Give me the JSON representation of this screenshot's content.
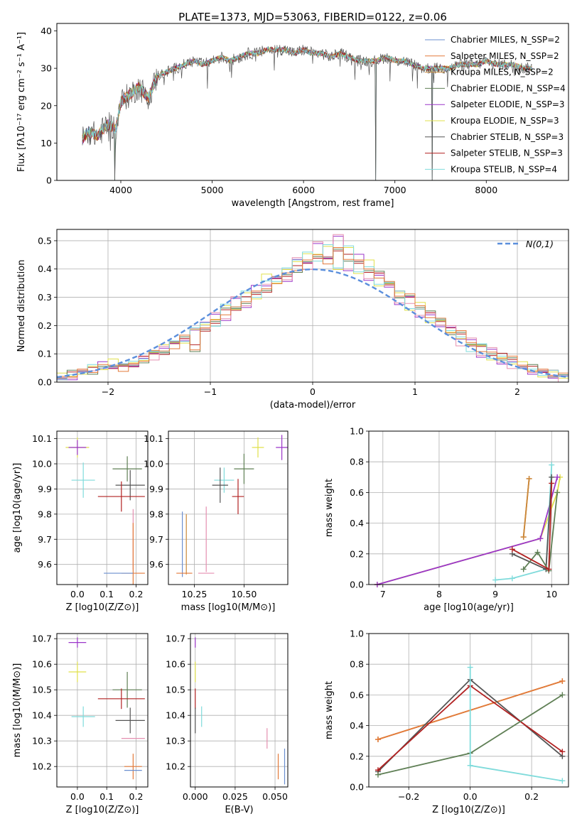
{
  "figure_title": "PLATE=1373, MJD=53063, FIBERID=0122, z=0.06",
  "colors": {
    "chabrier_miles": "#6b8fcf",
    "salpeter_miles": "#e37a3a",
    "kroupa_miles": "#c9893a",
    "chabrier_elodie": "#5f7f55",
    "salpeter_elodie": "#9b35c9",
    "kroupa_elodie": "#e0e04a",
    "chabrier_stelib": "#555555",
    "salpeter_stelib": "#b22222",
    "kroupa_stelib": "#7fdbdb",
    "salpeter_elodie_alt": "#e58fb0",
    "normal_curve": "#5b8fdc"
  },
  "chart_data": [
    {
      "type": "line",
      "panel": "spectrum",
      "xlabel": "wavelength [Angstrom, rest frame]",
      "ylabel": "Flux [fλ10⁻¹⁷ erg cm⁻² s⁻¹ A⁻¹]",
      "xlim": [
        3300,
        8900
      ],
      "ylim": [
        0,
        42
      ],
      "xticks": [
        4000,
        5000,
        6000,
        7000,
        8000
      ],
      "yticks": [
        0,
        10,
        20,
        30,
        40
      ],
      "legend_position": "top-right",
      "legend": [
        "Chabrier MILES, N_SSP=2",
        "Salpeter MILES, N_SSP=2",
        "Kroupa MILES, N_SSP=2",
        "Chabrier ELODIE, N_SSP=4",
        "Salpeter ELODIE, N_SSP=3",
        "Kroupa ELODIE, N_SSP=3",
        "Chabrier STELIB, N_SSP=3",
        "Salpeter STELIB, N_SSP=3",
        "Kroupa STELIB, N_SSP=4"
      ],
      "continuum": {
        "x": [
          3580,
          3650,
          3750,
          3850,
          3950,
          4000,
          4100,
          4200,
          4300,
          4400,
          4500,
          4600,
          4700,
          4800,
          4900,
          5000,
          5100,
          5200,
          5300,
          5400,
          5500,
          5600,
          5700,
          5800,
          5900,
          6000,
          6100,
          6200,
          6300,
          6400,
          6500,
          6600,
          6700,
          6800,
          6900,
          7000,
          7100,
          7200,
          7300,
          7400,
          7500,
          7600,
          7700,
          7800,
          7900,
          8000,
          8100,
          8200,
          8300,
          8400,
          8500
        ],
        "y": [
          11,
          13,
          12,
          15,
          14,
          21,
          23,
          25,
          22,
          28,
          29,
          30,
          31,
          32,
          31,
          32,
          33,
          32,
          33,
          34,
          34,
          35,
          35,
          35,
          34,
          35,
          34,
          34,
          33,
          34,
          33,
          32,
          32,
          32,
          33,
          32,
          32,
          31,
          30,
          30,
          30,
          30,
          31,
          31,
          31,
          32,
          31,
          31,
          31,
          30,
          30
        ]
      },
      "spikes": [
        {
          "x": 3935,
          "y": 0
        },
        {
          "x": 6790,
          "y": 0
        },
        {
          "x": 7410,
          "y": 0
        }
      ]
    },
    {
      "type": "bar",
      "panel": "residual_histogram",
      "xlabel": "(data-model)/error",
      "ylabel": "Normed distribution",
      "xlim": [
        -2.5,
        2.5
      ],
      "ylim": [
        0,
        0.54
      ],
      "xticks": [
        -2,
        -1,
        0,
        1,
        2
      ],
      "yticks": [
        0.0,
        0.1,
        0.2,
        0.3,
        0.4,
        0.5
      ],
      "legend_position": "top-right",
      "legend": [
        "N(0,1)"
      ],
      "bin_edges_start": -2.5,
      "bin_width": 0.1,
      "series": [
        {
          "values": [
            0.02,
            0.03,
            0.04,
            0.04,
            0.05,
            0.06,
            0.05,
            0.06,
            0.08,
            0.1,
            0.11,
            0.13,
            0.16,
            0.12,
            0.18,
            0.22,
            0.25,
            0.26,
            0.29,
            0.31,
            0.33,
            0.36,
            0.38,
            0.4,
            0.42,
            0.45,
            0.43,
            0.47,
            0.44,
            0.42,
            0.4,
            0.38,
            0.35,
            0.31,
            0.3,
            0.27,
            0.24,
            0.22,
            0.18,
            0.17,
            0.14,
            0.12,
            0.1,
            0.09,
            0.08,
            0.06,
            0.05,
            0.04,
            0.03,
            0.02
          ]
        },
        {
          "values": [
            0.01,
            0.02,
            0.03,
            0.04,
            0.06,
            0.05,
            0.07,
            0.05,
            0.09,
            0.09,
            0.12,
            0.15,
            0.14,
            0.19,
            0.2,
            0.24,
            0.23,
            0.29,
            0.27,
            0.33,
            0.34,
            0.38,
            0.35,
            0.44,
            0.41,
            0.49,
            0.45,
            0.51,
            0.4,
            0.44,
            0.36,
            0.39,
            0.33,
            0.28,
            0.29,
            0.23,
            0.25,
            0.19,
            0.2,
            0.14,
            0.15,
            0.1,
            0.11,
            0.07,
            0.06,
            0.05,
            0.04,
            0.03,
            0.02,
            0.01
          ]
        },
        {
          "values": [
            0.02,
            0.02,
            0.04,
            0.05,
            0.05,
            0.07,
            0.06,
            0.08,
            0.07,
            0.11,
            0.12,
            0.14,
            0.15,
            0.18,
            0.21,
            0.21,
            0.27,
            0.27,
            0.31,
            0.3,
            0.37,
            0.35,
            0.41,
            0.42,
            0.46,
            0.44,
            0.48,
            0.41,
            0.47,
            0.39,
            0.42,
            0.34,
            0.36,
            0.31,
            0.26,
            0.27,
            0.21,
            0.23,
            0.17,
            0.16,
            0.12,
            0.13,
            0.09,
            0.08,
            0.07,
            0.06,
            0.04,
            0.03,
            0.03,
            0.02
          ]
        }
      ],
      "normal_curve": {
        "mean": 0,
        "sigma": 1
      }
    },
    {
      "type": "scatter",
      "panel": "age_vs_Z",
      "xlabel": "Z [log10(Z/Z⊙)]",
      "ylabel": "age  [log10(age/yr)]",
      "xlim": [
        -0.07,
        0.24
      ],
      "ylim": [
        9.52,
        10.13
      ],
      "xticks": [
        0.0,
        0.1,
        0.2
      ],
      "yticks": [
        9.6,
        9.7,
        9.8,
        9.9,
        10.0,
        10.1
      ],
      "points": [
        {
          "c": "kroupa_elodie",
          "x": 0.0,
          "y": 10.065,
          "xe": 0.04,
          "ye": 0.04
        },
        {
          "c": "salpeter_elodie",
          "x": 0.0,
          "y": 10.065,
          "xe": 0.03,
          "ye": 0.03
        },
        {
          "c": "chabrier_elodie",
          "x": 0.17,
          "y": 9.98,
          "xe": 0.05,
          "ye": 0.05
        },
        {
          "c": "kroupa_stelib",
          "x": 0.02,
          "y": 9.935,
          "xe": 0.04,
          "ye": 0.07
        },
        {
          "c": "chabrier_stelib",
          "x": 0.18,
          "y": 9.915,
          "xe": 0.05,
          "ye": 0.06
        },
        {
          "c": "salpeter_stelib",
          "x": 0.15,
          "y": 9.87,
          "xe": 0.08,
          "ye": 0.06
        },
        {
          "c": "salpeter_elodie_alt",
          "x": 0.19,
          "y": 9.7,
          "xe": 0.0,
          "ye": 0.12
        },
        {
          "c": "salpeter_miles",
          "x": 0.19,
          "y": 9.565,
          "xe": 0.04,
          "ye": 0.2
        },
        {
          "c": "chabrier_miles",
          "x": 0.14,
          "y": 9.565,
          "xe": 0.05,
          "ye": 0.0
        },
        {
          "c": "kroupa_miles",
          "x": 0.19,
          "y": 9.565,
          "xe": 0.0,
          "ye": 0.0
        }
      ]
    },
    {
      "type": "scatter",
      "panel": "age_vs_mass",
      "xlabel": "mass [log10(M/M⊙)]",
      "xlim": [
        10.12,
        10.72
      ],
      "ylim": [
        9.52,
        10.13
      ],
      "xticks": [
        10.25,
        10.5
      ],
      "xticklabels": [
        "10.25",
        "10.50"
      ],
      "yticks": [
        9.6,
        9.7,
        9.8,
        9.9,
        10.0,
        10.1
      ],
      "points": [
        {
          "c": "kroupa_elodie",
          "x": 10.57,
          "y": 10.065,
          "xe": 0.03,
          "ye": 0.04
        },
        {
          "c": "salpeter_elodie",
          "x": 10.69,
          "y": 10.065,
          "xe": 0.03,
          "ye": 0.05
        },
        {
          "c": "chabrier_elodie",
          "x": 10.5,
          "y": 9.98,
          "xe": 0.05,
          "ye": 0.06
        },
        {
          "c": "kroupa_stelib",
          "x": 10.4,
          "y": 9.935,
          "xe": 0.05,
          "ye": 0.05
        },
        {
          "c": "chabrier_stelib",
          "x": 10.38,
          "y": 9.915,
          "xe": 0.04,
          "ye": 0.07
        },
        {
          "c": "salpeter_stelib",
          "x": 10.47,
          "y": 9.87,
          "xe": 0.03,
          "ye": 0.07
        },
        {
          "c": "salpeter_elodie_alt",
          "x": 10.31,
          "y": 9.7,
          "xe": 0.0,
          "ye": 0.13
        },
        {
          "c": "chabrier_miles",
          "x": 10.19,
          "y": 9.68,
          "xe": 0.0,
          "ye": 0.13
        },
        {
          "c": "kroupa_miles",
          "x": 10.21,
          "y": 9.68,
          "xe": 0.0,
          "ye": 0.12
        },
        {
          "c": "salpeter_miles",
          "x": 10.2,
          "y": 9.565,
          "xe": 0.04,
          "ye": 0.0
        },
        {
          "c": "salpeter_elodie_alt",
          "x": 10.31,
          "y": 9.565,
          "xe": 0.04,
          "ye": 0.0
        }
      ]
    },
    {
      "type": "line",
      "panel": "mass_weight_vs_age",
      "xlabel": "age  [log10(age/yr)]",
      "ylabel": "mass weight",
      "xlim": [
        6.75,
        10.3
      ],
      "ylim": [
        0.0,
        1.0
      ],
      "xticks": [
        7,
        8,
        9,
        10
      ],
      "yticks": [
        0.0,
        0.2,
        0.4,
        0.6,
        0.8,
        1.0
      ],
      "series": [
        {
          "c": "kroupa_elodie",
          "x": [
            6.9,
            9.8,
            10.1,
            10.15
          ],
          "y": [
            0.0,
            0.3,
            0.6,
            0.7
          ]
        },
        {
          "c": "salpeter_elodie",
          "x": [
            6.9,
            9.8,
            10.1
          ],
          "y": [
            0.0,
            0.3,
            0.7
          ]
        },
        {
          "c": "kroupa_stelib",
          "x": [
            9.0,
            9.3,
            9.9,
            10.0
          ],
          "y": [
            0.03,
            0.04,
            0.1,
            0.78
          ]
        },
        {
          "c": "chabrier_stelib",
          "x": [
            9.3,
            9.9,
            10.0
          ],
          "y": [
            0.2,
            0.1,
            0.7
          ]
        },
        {
          "c": "chabrier_elodie",
          "x": [
            9.5,
            9.75,
            9.95,
            10.1
          ],
          "y": [
            0.1,
            0.21,
            0.09,
            0.6
          ]
        },
        {
          "c": "salpeter_stelib",
          "x": [
            9.3,
            9.95,
            10.0
          ],
          "y": [
            0.23,
            0.1,
            0.66
          ]
        },
        {
          "c": "salpeter_miles",
          "x": [
            9.5,
            9.6
          ],
          "y": [
            0.31,
            0.69
          ]
        },
        {
          "c": "kroupa_miles",
          "x": [
            9.5,
            9.6
          ],
          "y": [
            0.31,
            0.69
          ]
        }
      ]
    },
    {
      "type": "scatter",
      "panel": "mass_vs_Z",
      "xlabel": "Z [log10(Z/Z⊙)]",
      "ylabel": "mass [log10(M/M⊙)]",
      "xlim": [
        -0.07,
        0.24
      ],
      "ylim": [
        10.12,
        10.72
      ],
      "xticks": [
        0.0,
        0.1,
        0.2
      ],
      "yticks": [
        10.2,
        10.3,
        10.4,
        10.5,
        10.6,
        10.7
      ],
      "points": [
        {
          "c": "salpeter_elodie",
          "x": 0.0,
          "y": 10.685,
          "xe": 0.03,
          "ye": 0.02
        },
        {
          "c": "kroupa_elodie",
          "x": 0.0,
          "y": 10.57,
          "xe": 0.03,
          "ye": 0.04
        },
        {
          "c": "chabrier_elodie",
          "x": 0.17,
          "y": 10.5,
          "xe": 0.05,
          "ye": 0.07
        },
        {
          "c": "salpeter_stelib",
          "x": 0.15,
          "y": 10.465,
          "xe": 0.08,
          "ye": 0.04
        },
        {
          "c": "kroupa_stelib",
          "x": 0.02,
          "y": 10.395,
          "xe": 0.04,
          "ye": 0.04
        },
        {
          "c": "chabrier_stelib",
          "x": 0.18,
          "y": 10.38,
          "xe": 0.05,
          "ye": 0.05
        },
        {
          "c": "salpeter_elodie_alt",
          "x": 0.19,
          "y": 10.31,
          "xe": 0.04,
          "ye": 0.0
        },
        {
          "c": "salpeter_miles",
          "x": 0.19,
          "y": 10.2,
          "xe": 0.03,
          "ye": 0.05
        },
        {
          "c": "chabrier_miles",
          "x": 0.19,
          "y": 10.185,
          "xe": 0.03,
          "ye": 0.0
        }
      ]
    },
    {
      "type": "scatter",
      "panel": "mass_vs_EBV",
      "xlabel": "E(B-V)",
      "xlim": [
        -0.003,
        0.058
      ],
      "ylim": [
        10.12,
        10.72
      ],
      "xticks": [
        0.0,
        0.025,
        0.05
      ],
      "xticklabels": [
        "0.000",
        "0.025",
        "0.050"
      ],
      "yticks": [
        10.2,
        10.3,
        10.4,
        10.5,
        10.6,
        10.7
      ],
      "points": [
        {
          "c": "salpeter_elodie",
          "x": 0.0,
          "y": 10.685,
          "xe": 0.0,
          "ye": 0.02
        },
        {
          "c": "kroupa_elodie",
          "x": 0.0,
          "y": 10.57,
          "xe": 0.0,
          "ye": 0.04
        },
        {
          "c": "salpeter_stelib",
          "x": 0.0,
          "y": 10.465,
          "xe": 0.0,
          "ye": 0.04
        },
        {
          "c": "chabrier_stelib",
          "x": 0.0,
          "y": 10.38,
          "xe": 0.0,
          "ye": 0.05
        },
        {
          "c": "kroupa_stelib",
          "x": 0.004,
          "y": 10.395,
          "xe": 0.0,
          "ye": 0.04
        },
        {
          "c": "salpeter_elodie_alt",
          "x": 0.045,
          "y": 10.31,
          "xe": 0.0,
          "ye": 0.04
        },
        {
          "c": "salpeter_miles",
          "x": 0.052,
          "y": 10.2,
          "xe": 0.0,
          "ye": 0.05
        },
        {
          "c": "chabrier_miles",
          "x": 0.056,
          "y": 10.2,
          "xe": 0.0,
          "ye": 0.07
        }
      ]
    },
    {
      "type": "line",
      "panel": "mass_weight_vs_Z",
      "xlabel": "Z [log10(Z/Z⊙)]",
      "ylabel": "mass weight",
      "xlim": [
        -0.33,
        0.32
      ],
      "ylim": [
        0.0,
        1.0
      ],
      "xticks": [
        -0.2,
        0.0,
        0.2
      ],
      "yticks": [
        0.0,
        0.2,
        0.4,
        0.6,
        0.8,
        1.0
      ],
      "series": [
        {
          "c": "kroupa_miles",
          "x": [
            -0.3,
            0.3
          ],
          "y": [
            0.31,
            0.69
          ]
        },
        {
          "c": "salpeter_miles",
          "x": [
            -0.3,
            0.3
          ],
          "y": [
            0.31,
            0.69
          ]
        },
        {
          "c": "chabrier_stelib",
          "x": [
            -0.3,
            0.0,
            0.3
          ],
          "y": [
            0.1,
            0.7,
            0.2
          ]
        },
        {
          "c": "salpeter_stelib",
          "x": [
            -0.3,
            0.0,
            0.3
          ],
          "y": [
            0.11,
            0.66,
            0.23
          ]
        },
        {
          "c": "chabrier_elodie",
          "x": [
            -0.3,
            0.0,
            0.3
          ],
          "y": [
            0.08,
            0.22,
            0.6
          ]
        },
        {
          "c": "kroupa_stelib",
          "x": [
            0.0,
            0.0,
            0.3
          ],
          "y": [
            0.78,
            0.14,
            0.04
          ]
        }
      ]
    }
  ]
}
